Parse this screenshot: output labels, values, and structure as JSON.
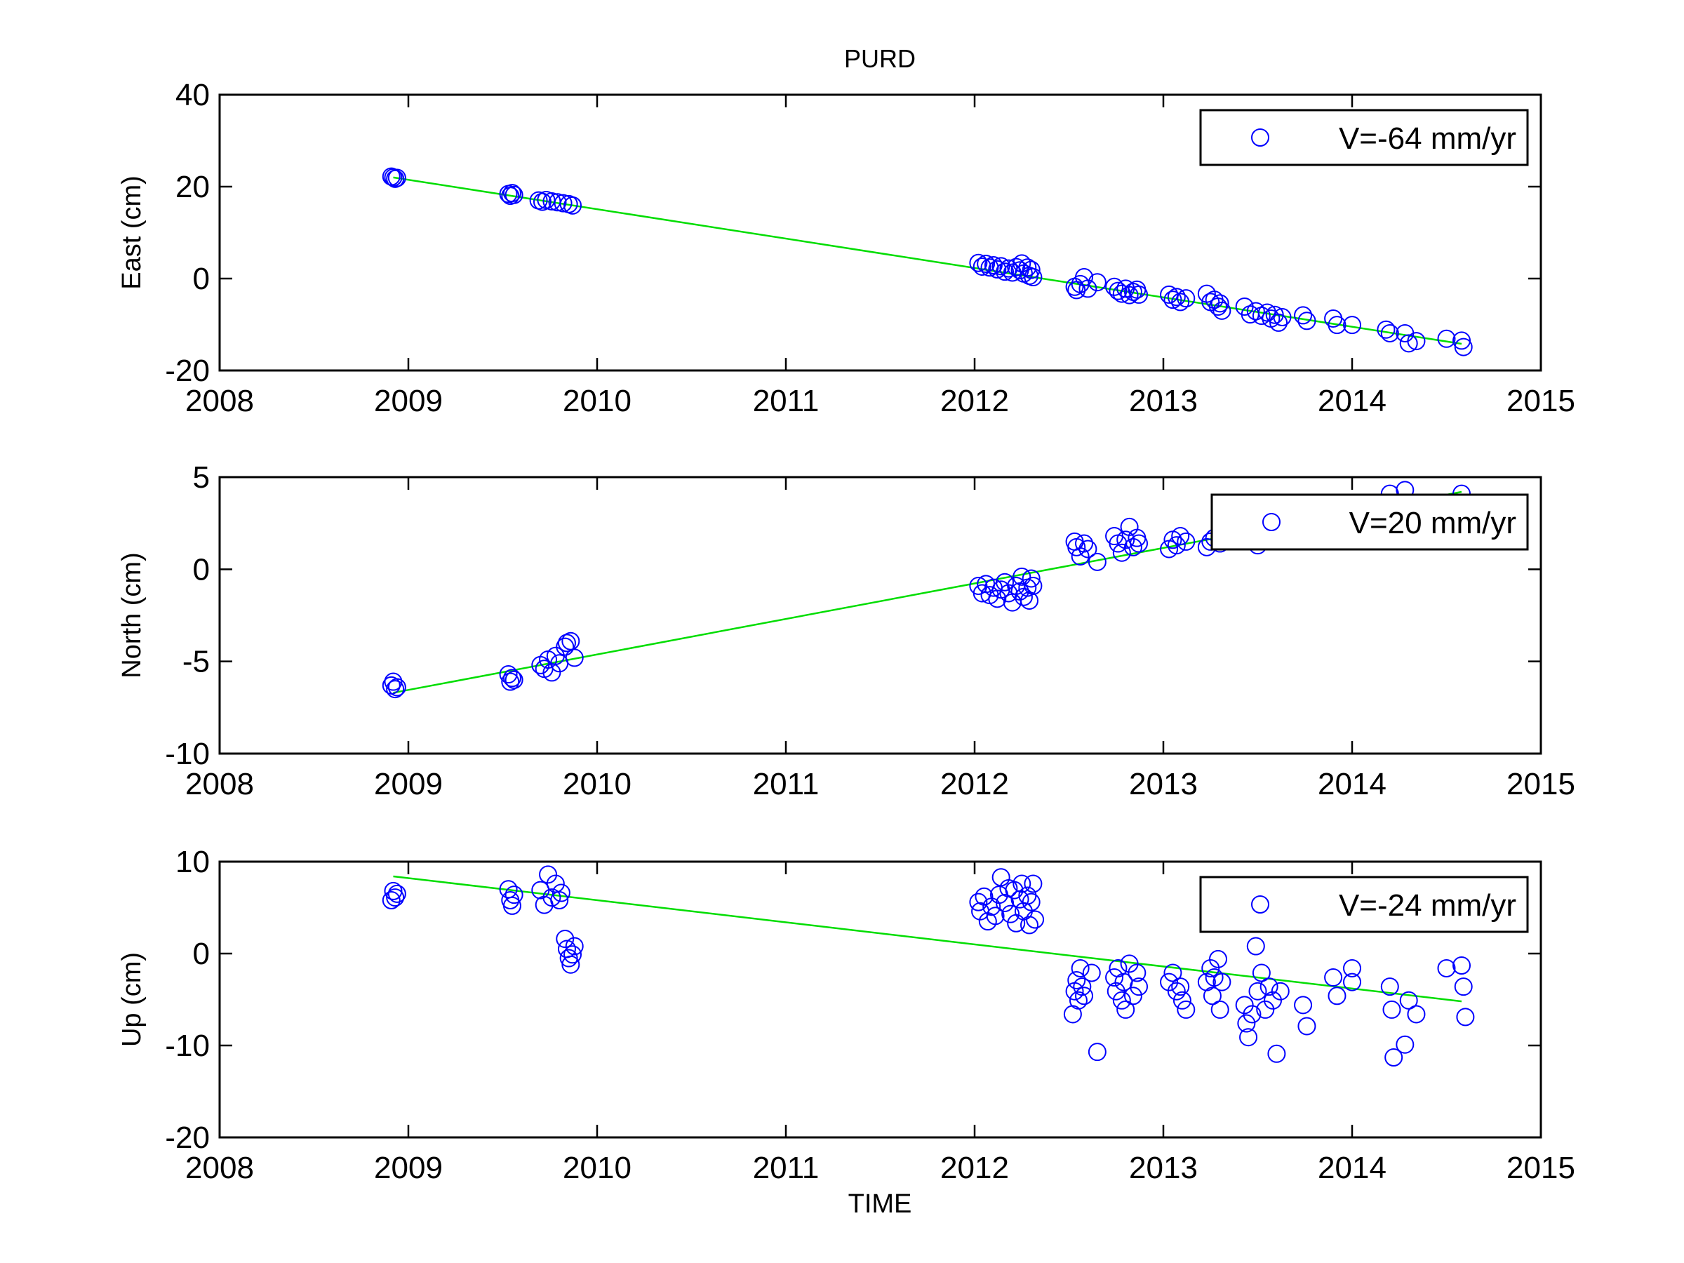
{
  "figure": {
    "title": "PURD",
    "xlabel": "TIME"
  },
  "colors": {
    "points": "#0000FF",
    "fit": "#00DD00",
    "axes": "#000000",
    "background": "#FFFFFF"
  },
  "legend_icon": "circle-marker",
  "chart_data": [
    {
      "type": "scatter",
      "ylabel": "East (cm)",
      "xlim": [
        2008,
        2015
      ],
      "ylim": [
        -20,
        40
      ],
      "xticks": [
        "2008",
        "2009",
        "2010",
        "2011",
        "2012",
        "2013",
        "2014",
        "2015"
      ],
      "yticks": [
        "-20",
        "0",
        "20",
        "40"
      ],
      "legend": "V=-64 mm/yr",
      "legend_position": "top-right",
      "fit_line": {
        "x": [
          2008.92,
          2014.58
        ],
        "y": [
          22.0,
          -14.2
        ]
      },
      "points": [
        [
          2008.92,
          22.0
        ],
        [
          2008.93,
          21.7
        ],
        [
          2008.91,
          22.2
        ],
        [
          2008.94,
          21.9
        ],
        [
          2009.53,
          18.4
        ],
        [
          2009.54,
          18.0
        ],
        [
          2009.55,
          18.6
        ],
        [
          2009.56,
          18.2
        ],
        [
          2009.69,
          17.0
        ],
        [
          2009.71,
          16.7
        ],
        [
          2009.73,
          17.1
        ],
        [
          2009.76,
          16.8
        ],
        [
          2009.79,
          16.6
        ],
        [
          2009.82,
          16.4
        ],
        [
          2009.85,
          16.2
        ],
        [
          2009.87,
          15.9
        ],
        [
          2012.02,
          3.4
        ],
        [
          2012.04,
          2.6
        ],
        [
          2012.06,
          3.2
        ],
        [
          2012.08,
          2.4
        ],
        [
          2012.1,
          2.9
        ],
        [
          2012.12,
          2.0
        ],
        [
          2012.14,
          2.7
        ],
        [
          2012.16,
          1.5
        ],
        [
          2012.18,
          2.2
        ],
        [
          2012.2,
          1.3
        ],
        [
          2012.22,
          2.5
        ],
        [
          2012.24,
          1.8
        ],
        [
          2012.25,
          3.3
        ],
        [
          2012.26,
          1.1
        ],
        [
          2012.28,
          2.4
        ],
        [
          2012.29,
          0.6
        ],
        [
          2012.3,
          1.9
        ],
        [
          2012.31,
          0.3
        ],
        [
          2012.53,
          -1.8
        ],
        [
          2012.54,
          -2.5
        ],
        [
          2012.56,
          -1.2
        ],
        [
          2012.58,
          0.3
        ],
        [
          2012.6,
          -2.2
        ],
        [
          2012.65,
          -0.8
        ],
        [
          2012.74,
          -1.8
        ],
        [
          2012.76,
          -2.7
        ],
        [
          2012.78,
          -3.3
        ],
        [
          2012.8,
          -2.2
        ],
        [
          2012.82,
          -3.6
        ],
        [
          2012.84,
          -2.9
        ],
        [
          2012.86,
          -2.4
        ],
        [
          2012.87,
          -3.5
        ],
        [
          2013.03,
          -3.5
        ],
        [
          2013.05,
          -4.6
        ],
        [
          2013.07,
          -4.0
        ],
        [
          2013.09,
          -5.1
        ],
        [
          2013.12,
          -4.3
        ],
        [
          2013.23,
          -3.3
        ],
        [
          2013.25,
          -5.1
        ],
        [
          2013.27,
          -4.6
        ],
        [
          2013.29,
          -6.1
        ],
        [
          2013.3,
          -5.4
        ],
        [
          2013.31,
          -7.0
        ],
        [
          2013.43,
          -6.1
        ],
        [
          2013.46,
          -7.8
        ],
        [
          2013.49,
          -7.1
        ],
        [
          2013.52,
          -8.1
        ],
        [
          2013.55,
          -7.4
        ],
        [
          2013.57,
          -8.7
        ],
        [
          2013.59,
          -7.9
        ],
        [
          2013.61,
          -9.6
        ],
        [
          2013.63,
          -8.4
        ],
        [
          2013.74,
          -8.0
        ],
        [
          2013.76,
          -9.2
        ],
        [
          2013.9,
          -8.7
        ],
        [
          2013.92,
          -10.1
        ],
        [
          2014.0,
          -10.1
        ],
        [
          2014.18,
          -11.1
        ],
        [
          2014.2,
          -11.9
        ],
        [
          2014.28,
          -11.9
        ],
        [
          2014.3,
          -14.1
        ],
        [
          2014.34,
          -13.6
        ],
        [
          2014.5,
          -13.1
        ],
        [
          2014.58,
          -13.5
        ],
        [
          2014.59,
          -14.9
        ]
      ]
    },
    {
      "type": "scatter",
      "ylabel": "North (cm)",
      "xlim": [
        2008,
        2015
      ],
      "ylim": [
        -10,
        5
      ],
      "xticks": [
        "2008",
        "2009",
        "2010",
        "2011",
        "2012",
        "2013",
        "2014",
        "2015"
      ],
      "yticks": [
        "-10",
        "-5",
        "0",
        "5"
      ],
      "legend": "V=20 mm/yr",
      "legend_position": "top-right",
      "fit_line": {
        "x": [
          2008.92,
          2014.58
        ],
        "y": [
          -6.7,
          4.2
        ]
      },
      "points": [
        [
          2008.92,
          -6.1
        ],
        [
          2008.93,
          -6.5
        ],
        [
          2008.91,
          -6.3
        ],
        [
          2008.94,
          -6.4
        ],
        [
          2009.53,
          -5.7
        ],
        [
          2009.54,
          -6.1
        ],
        [
          2009.55,
          -5.9
        ],
        [
          2009.56,
          -6.0
        ],
        [
          2009.7,
          -5.2
        ],
        [
          2009.72,
          -5.4
        ],
        [
          2009.74,
          -4.9
        ],
        [
          2009.76,
          -5.6
        ],
        [
          2009.78,
          -4.7
        ],
        [
          2009.8,
          -5.1
        ],
        [
          2009.83,
          -4.2
        ],
        [
          2009.84,
          -4.0
        ],
        [
          2009.86,
          -3.9
        ],
        [
          2009.88,
          -4.8
        ],
        [
          2012.02,
          -0.9
        ],
        [
          2012.04,
          -1.3
        ],
        [
          2012.06,
          -0.8
        ],
        [
          2012.08,
          -1.4
        ],
        [
          2012.1,
          -1.0
        ],
        [
          2012.12,
          -1.6
        ],
        [
          2012.14,
          -1.1
        ],
        [
          2012.16,
          -0.7
        ],
        [
          2012.18,
          -1.3
        ],
        [
          2012.2,
          -1.8
        ],
        [
          2012.22,
          -0.9
        ],
        [
          2012.24,
          -1.2
        ],
        [
          2012.25,
          -0.4
        ],
        [
          2012.26,
          -1.5
        ],
        [
          2012.28,
          -1.0
        ],
        [
          2012.29,
          -1.7
        ],
        [
          2012.3,
          -0.5
        ],
        [
          2012.31,
          -0.9
        ],
        [
          2012.53,
          1.5
        ],
        [
          2012.54,
          1.2
        ],
        [
          2012.56,
          0.7
        ],
        [
          2012.58,
          1.4
        ],
        [
          2012.6,
          1.1
        ],
        [
          2012.65,
          0.4
        ],
        [
          2012.74,
          1.8
        ],
        [
          2012.76,
          1.4
        ],
        [
          2012.78,
          0.9
        ],
        [
          2012.8,
          1.6
        ],
        [
          2012.82,
          2.3
        ],
        [
          2012.84,
          1.2
        ],
        [
          2012.86,
          1.7
        ],
        [
          2012.87,
          1.4
        ],
        [
          2013.03,
          1.1
        ],
        [
          2013.05,
          1.6
        ],
        [
          2013.07,
          1.3
        ],
        [
          2013.09,
          1.8
        ],
        [
          2013.12,
          1.5
        ],
        [
          2013.23,
          1.2
        ],
        [
          2013.25,
          1.5
        ],
        [
          2013.27,
          1.7
        ],
        [
          2013.3,
          1.4
        ],
        [
          2013.5,
          1.3
        ],
        [
          2014.2,
          4.1
        ],
        [
          2014.28,
          4.3
        ],
        [
          2014.58,
          4.1
        ]
      ]
    },
    {
      "type": "scatter",
      "ylabel": "Up (cm)",
      "xlim": [
        2008,
        2015
      ],
      "ylim": [
        -20,
        10
      ],
      "xticks": [
        "2008",
        "2009",
        "2010",
        "2011",
        "2012",
        "2013",
        "2014",
        "2015"
      ],
      "yticks": [
        "-20",
        "-10",
        "0",
        "10"
      ],
      "legend": "V=-24 mm/yr",
      "legend_position": "top-right",
      "fit_line": {
        "x": [
          2008.92,
          2014.58
        ],
        "y": [
          8.4,
          -5.2
        ]
      },
      "points": [
        [
          2008.92,
          6.8
        ],
        [
          2008.93,
          6.1
        ],
        [
          2008.91,
          5.8
        ],
        [
          2008.94,
          6.5
        ],
        [
          2009.53,
          7.0
        ],
        [
          2009.54,
          5.8
        ],
        [
          2009.55,
          5.2
        ],
        [
          2009.56,
          6.4
        ],
        [
          2009.7,
          6.9
        ],
        [
          2009.72,
          5.3
        ],
        [
          2009.74,
          8.6
        ],
        [
          2009.76,
          6.1
        ],
        [
          2009.78,
          7.6
        ],
        [
          2009.8,
          5.8
        ],
        [
          2009.81,
          6.6
        ],
        [
          2009.83,
          1.6
        ],
        [
          2009.84,
          0.5
        ],
        [
          2009.85,
          -0.5
        ],
        [
          2009.86,
          -1.2
        ],
        [
          2009.87,
          -0.1
        ],
        [
          2009.88,
          0.8
        ],
        [
          2012.02,
          5.6
        ],
        [
          2012.03,
          4.6
        ],
        [
          2012.05,
          6.2
        ],
        [
          2012.07,
          3.5
        ],
        [
          2012.09,
          5.1
        ],
        [
          2012.11,
          4.1
        ],
        [
          2012.13,
          6.4
        ],
        [
          2012.14,
          8.3
        ],
        [
          2012.16,
          5.5
        ],
        [
          2012.18,
          7.1
        ],
        [
          2012.19,
          4.3
        ],
        [
          2012.21,
          6.9
        ],
        [
          2012.22,
          3.3
        ],
        [
          2012.24,
          5.9
        ],
        [
          2012.25,
          7.6
        ],
        [
          2012.26,
          4.6
        ],
        [
          2012.28,
          6.3
        ],
        [
          2012.29,
          3.1
        ],
        [
          2012.3,
          5.6
        ],
        [
          2012.31,
          7.6
        ],
        [
          2012.32,
          3.7
        ],
        [
          2012.52,
          -6.6
        ],
        [
          2012.53,
          -4.1
        ],
        [
          2012.54,
          -2.9
        ],
        [
          2012.55,
          -5.1
        ],
        [
          2012.56,
          -1.6
        ],
        [
          2012.57,
          -3.6
        ],
        [
          2012.58,
          -4.6
        ],
        [
          2012.62,
          -2.1
        ],
        [
          2012.65,
          -10.7
        ],
        [
          2012.74,
          -2.6
        ],
        [
          2012.75,
          -4.1
        ],
        [
          2012.76,
          -1.6
        ],
        [
          2012.78,
          -5.1
        ],
        [
          2012.79,
          -3.1
        ],
        [
          2012.8,
          -6.1
        ],
        [
          2012.82,
          -1.1
        ],
        [
          2012.84,
          -4.6
        ],
        [
          2012.86,
          -2.1
        ],
        [
          2012.87,
          -3.6
        ],
        [
          2013.03,
          -3.1
        ],
        [
          2013.05,
          -2.1
        ],
        [
          2013.07,
          -4.1
        ],
        [
          2013.09,
          -3.6
        ],
        [
          2013.1,
          -5.1
        ],
        [
          2013.12,
          -6.1
        ],
        [
          2013.23,
          -3.1
        ],
        [
          2013.25,
          -1.6
        ],
        [
          2013.26,
          -4.6
        ],
        [
          2013.27,
          -2.6
        ],
        [
          2013.29,
          -0.6
        ],
        [
          2013.3,
          -6.1
        ],
        [
          2013.31,
          -3.1
        ],
        [
          2013.43,
          -5.6
        ],
        [
          2013.44,
          -7.6
        ],
        [
          2013.45,
          -9.1
        ],
        [
          2013.47,
          -6.6
        ],
        [
          2013.49,
          0.8
        ],
        [
          2013.5,
          -4.1
        ],
        [
          2013.52,
          -2.1
        ],
        [
          2013.54,
          -6.1
        ],
        [
          2013.56,
          -3.6
        ],
        [
          2013.58,
          -5.1
        ],
        [
          2013.6,
          -10.9
        ],
        [
          2013.62,
          -4.1
        ],
        [
          2013.74,
          -5.6
        ],
        [
          2013.76,
          -7.9
        ],
        [
          2013.9,
          -2.6
        ],
        [
          2013.92,
          -4.6
        ],
        [
          2014.0,
          -1.6
        ],
        [
          2014.0,
          -3.1
        ],
        [
          2014.2,
          -3.6
        ],
        [
          2014.21,
          -6.1
        ],
        [
          2014.22,
          -11.3
        ],
        [
          2014.28,
          -9.9
        ],
        [
          2014.3,
          -5.1
        ],
        [
          2014.34,
          -6.6
        ],
        [
          2014.5,
          -1.6
        ],
        [
          2014.58,
          -1.3
        ],
        [
          2014.59,
          -3.6
        ],
        [
          2014.6,
          -6.9
        ]
      ]
    }
  ]
}
